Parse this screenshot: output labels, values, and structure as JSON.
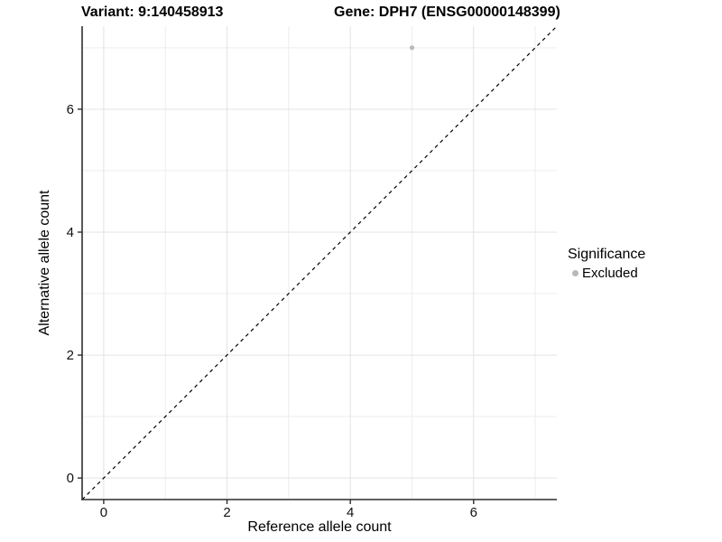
{
  "header": {
    "title_left": "Variant: 9:140458913",
    "title_right": "Gene: DPH7 (ENSG00000148399)"
  },
  "chart_data": {
    "type": "scatter",
    "title_left": "Variant: 9:140458913",
    "title_right": "Gene: DPH7 (ENSG00000148399)",
    "xlabel": "Reference allele count",
    "ylabel": "Alternative allele count",
    "xlim": [
      -0.35,
      7.35
    ],
    "ylim": [
      -0.35,
      7.35
    ],
    "x_major_ticks": [
      0,
      2,
      4,
      6
    ],
    "y_major_ticks": [
      0,
      2,
      4,
      6
    ],
    "x_minor_ticks": [
      1,
      3,
      5,
      7
    ],
    "y_minor_ticks": [
      1,
      3,
      5,
      7
    ],
    "grid": true,
    "legend_position": "right",
    "reference_line": {
      "slope": 1,
      "intercept": 0,
      "style": "dashed",
      "color": "#000000"
    },
    "series": [
      {
        "name": "Excluded",
        "color": "#b9b9b9",
        "points": [
          {
            "x": 5,
            "y": 7
          }
        ]
      }
    ],
    "legend": {
      "title": "Significance",
      "entries": [
        {
          "label": "Excluded",
          "color": "#b9b9b9"
        }
      ]
    },
    "style": {
      "grid_major_color": "#e3e3e3",
      "grid_minor_color": "#ededed",
      "axis_line_color": "#2e2e2e",
      "tick_label_color": "#111111",
      "tick_label_size": 15,
      "point_radius": 2.6
    }
  }
}
